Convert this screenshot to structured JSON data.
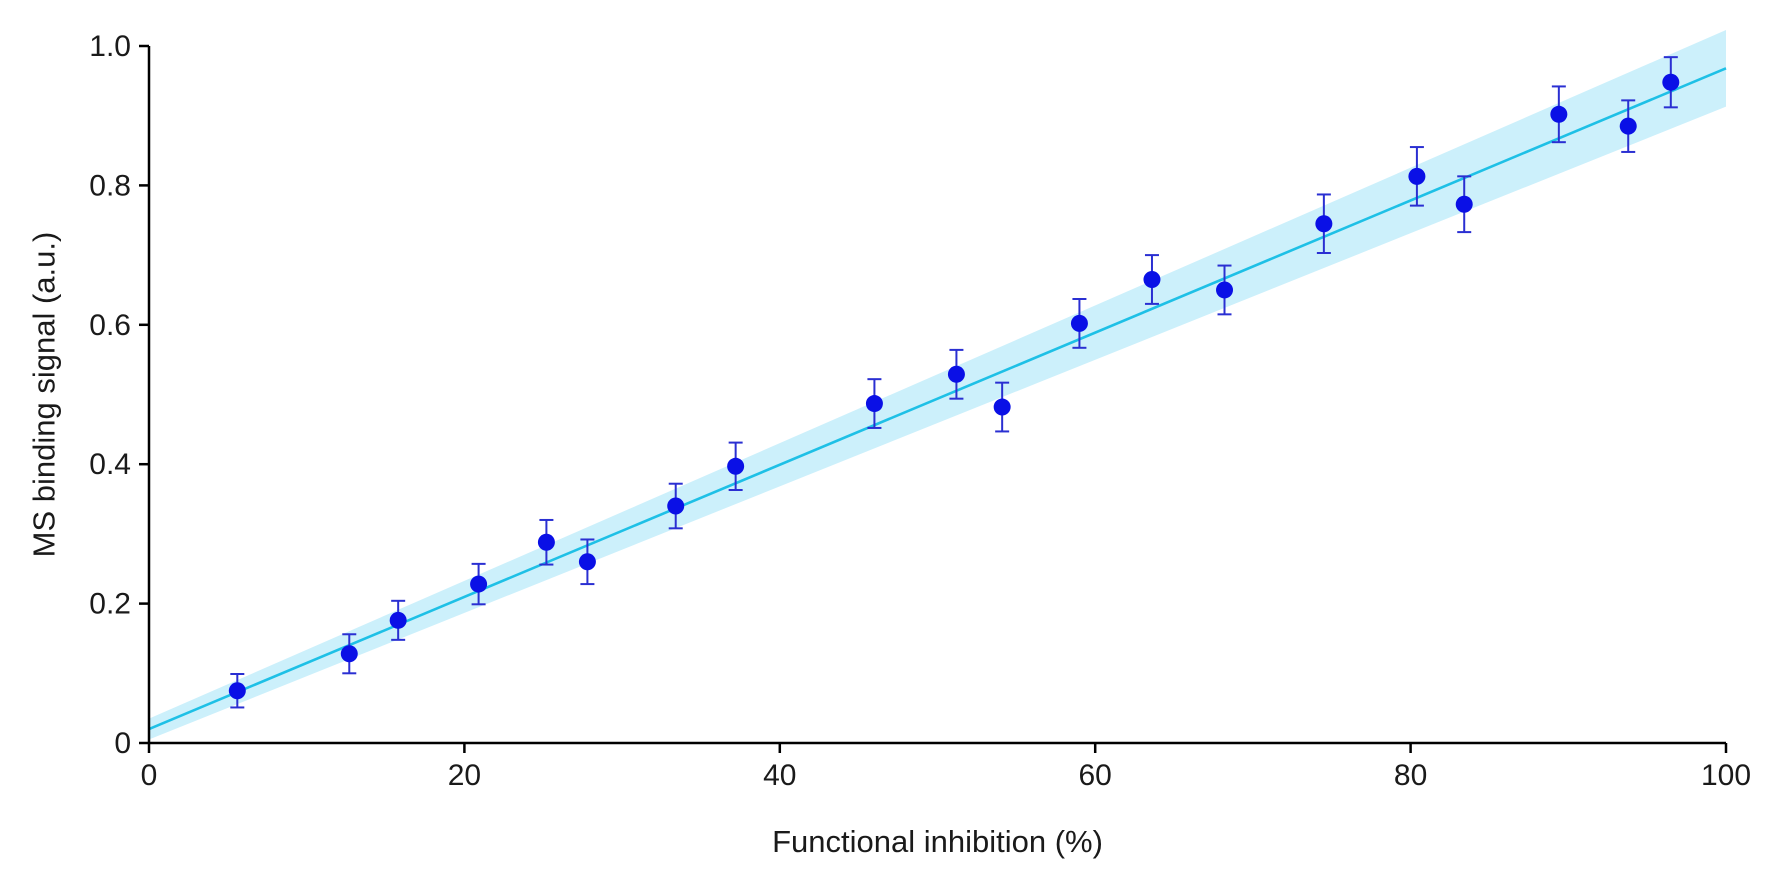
{
  "chart_data": {
    "type": "scatter",
    "title": "",
    "xlabel": "Functional inhibition (%)",
    "ylabel": "MS binding signal (a.u.)",
    "xlim": [
      0,
      100
    ],
    "ylim": [
      0,
      1.0
    ],
    "x_ticks": [
      0,
      20,
      40,
      60,
      80,
      100
    ],
    "x_tick_labels": [
      "0",
      "20",
      "40",
      "60",
      "80",
      "100"
    ],
    "y_ticks": [
      0,
      0.2,
      0.4,
      0.6,
      0.8,
      1.0
    ],
    "y_tick_labels": [
      "0",
      "0.2",
      "0.4",
      "0.6",
      "0.8",
      "1.0"
    ],
    "grid": false,
    "legend": "none",
    "series": [
      {
        "points": [
          {
            "x": 5.6,
            "y": 0.075,
            "err": 0.024
          },
          {
            "x": 12.7,
            "y": 0.128,
            "err": 0.028
          },
          {
            "x": 15.8,
            "y": 0.176,
            "err": 0.028
          },
          {
            "x": 20.9,
            "y": 0.228,
            "err": 0.029
          },
          {
            "x": 25.2,
            "y": 0.288,
            "err": 0.032
          },
          {
            "x": 27.8,
            "y": 0.26,
            "err": 0.032
          },
          {
            "x": 33.4,
            "y": 0.34,
            "err": 0.032
          },
          {
            "x": 37.2,
            "y": 0.397,
            "err": 0.034
          },
          {
            "x": 46.0,
            "y": 0.487,
            "err": 0.035
          },
          {
            "x": 51.2,
            "y": 0.529,
            "err": 0.035
          },
          {
            "x": 54.1,
            "y": 0.482,
            "err": 0.035
          },
          {
            "x": 59.0,
            "y": 0.602,
            "err": 0.035
          },
          {
            "x": 63.6,
            "y": 0.665,
            "err": 0.035
          },
          {
            "x": 68.2,
            "y": 0.65,
            "err": 0.035
          },
          {
            "x": 74.5,
            "y": 0.745,
            "err": 0.042
          },
          {
            "x": 80.4,
            "y": 0.813,
            "err": 0.042
          },
          {
            "x": 83.4,
            "y": 0.773,
            "err": 0.04
          },
          {
            "x": 89.4,
            "y": 0.902,
            "err": 0.04
          },
          {
            "x": 93.8,
            "y": 0.885,
            "err": 0.037
          },
          {
            "x": 96.5,
            "y": 0.948,
            "err": 0.036
          }
        ]
      }
    ],
    "fit_line": {
      "x": [
        0,
        100
      ],
      "y": [
        0.02,
        0.968
      ]
    },
    "confidence_band": {
      "x": [
        0,
        100
      ],
      "lower": [
        0.005,
        0.913
      ],
      "upper": [
        0.035,
        1.023
      ]
    },
    "colors": {
      "points": "#0a10e6",
      "error_bars": "#2a2fd2",
      "fit_line": "#1ec0e6",
      "band": "#ccf0fb",
      "axes": "#000000"
    }
  }
}
